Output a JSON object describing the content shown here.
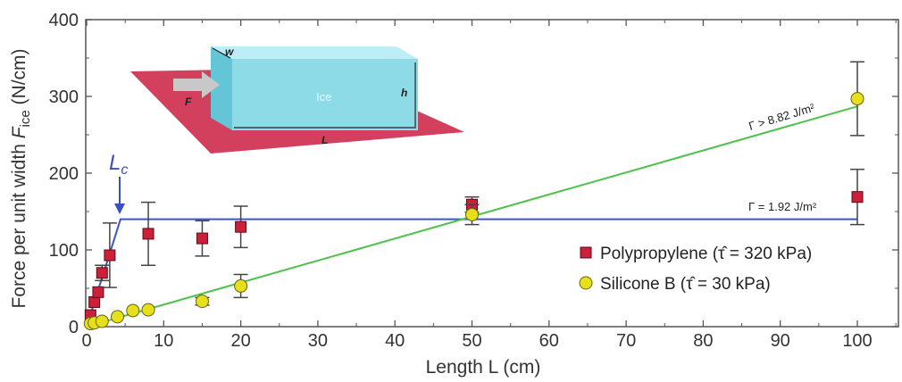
{
  "chart_data": {
    "type": "scatter",
    "xlabel": "Length  L (cm)",
    "ylabel_main": "Force per unit width  ",
    "ylabel_symbol": "F",
    "ylabel_sub": "ice",
    "ylabel_unit": " (N/cm)",
    "xlim": [
      0,
      105
    ],
    "ylim": [
      0,
      400
    ],
    "xticks": [
      0,
      10,
      20,
      30,
      40,
      50,
      60,
      70,
      80,
      90,
      100
    ],
    "yticks": [
      0,
      100,
      200,
      300,
      400
    ],
    "grid": false,
    "legend_position": "lower-right",
    "series": [
      {
        "name": "Polypropylene (τ̂ = 320 kPa)",
        "marker": "square",
        "color": "#cc1f3a",
        "points": [
          {
            "x": 0.5,
            "y": 15,
            "err": 0
          },
          {
            "x": 1,
            "y": 32,
            "err": 0
          },
          {
            "x": 1.5,
            "y": 45,
            "err": 0
          },
          {
            "x": 2,
            "y": 70,
            "err": 10
          },
          {
            "x": 3,
            "y": 93,
            "err": 42
          },
          {
            "x": 8,
            "y": 121,
            "err": 41
          },
          {
            "x": 15,
            "y": 115,
            "err": 23
          },
          {
            "x": 20,
            "y": 130,
            "err": 27
          },
          {
            "x": 50,
            "y": 159,
            "err": 10
          },
          {
            "x": 100,
            "y": 169,
            "err": 36
          }
        ]
      },
      {
        "name": "Silicone B (τ̂ = 30 kPa)",
        "marker": "circle",
        "color": "#e6df1c",
        "points": [
          {
            "x": 0.5,
            "y": 4,
            "err": 0
          },
          {
            "x": 1,
            "y": 5,
            "err": 0
          },
          {
            "x": 2,
            "y": 7,
            "err": 0
          },
          {
            "x": 4,
            "y": 13,
            "err": 0
          },
          {
            "x": 6,
            "y": 21,
            "err": 0
          },
          {
            "x": 8,
            "y": 22,
            "err": 0
          },
          {
            "x": 15,
            "y": 33,
            "err": 5
          },
          {
            "x": 20,
            "y": 53,
            "err": 15
          },
          {
            "x": 50,
            "y": 146,
            "err": 13
          },
          {
            "x": 100,
            "y": 297,
            "err": 48
          }
        ]
      }
    ],
    "fit_lines": [
      {
        "label": "Γ = 1.92 J/m²",
        "color": "#3c55c8",
        "points": [
          [
            0,
            0
          ],
          [
            4.4,
            140
          ],
          [
            100,
            140
          ]
        ]
      },
      {
        "label": "Γ > 8.82 J/m²",
        "color": "#4cc24a",
        "points": [
          [
            0,
            0
          ],
          [
            100,
            287
          ]
        ]
      }
    ],
    "annotations": {
      "lc_label": "Lc",
      "lc_main": "L",
      "lc_sub": "c",
      "inset_labels": {
        "w": "w",
        "F": "F",
        "ice": "Ice",
        "h": "h",
        "L": "L"
      }
    }
  }
}
